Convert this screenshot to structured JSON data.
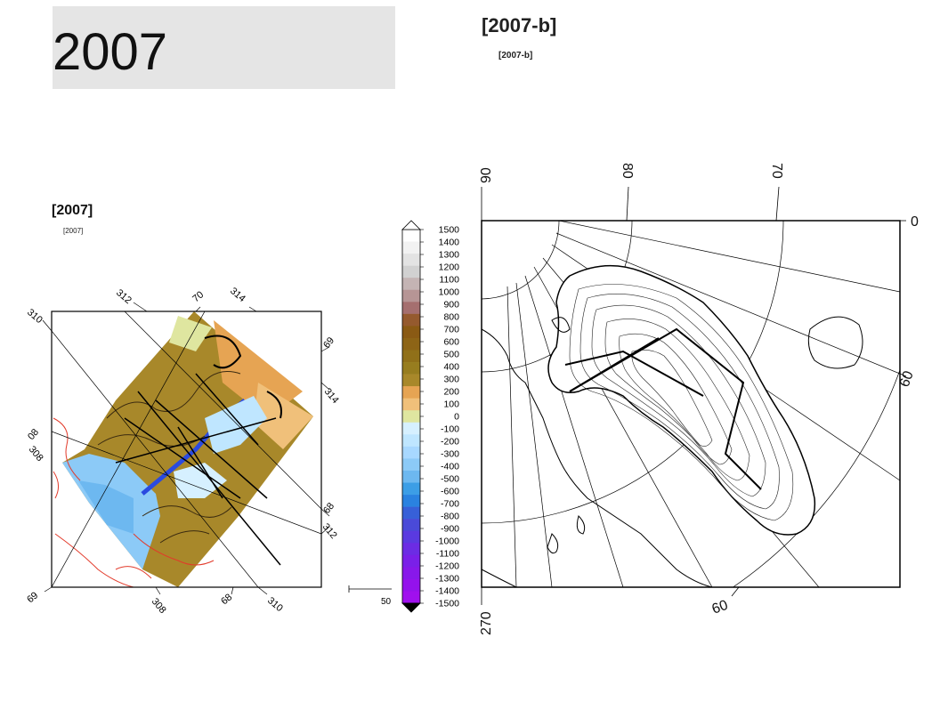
{
  "page_title": "2007",
  "map_right": {
    "caption": "[2007-b]",
    "subcaption": "[2007-b]",
    "lon_labels_top": [
      "90",
      "80",
      "70"
    ],
    "lon_labels_bottom": [
      "270",
      "60"
    ],
    "lat_labels_right": [
      "0",
      "60"
    ]
  },
  "map_left": {
    "caption": "[2007]",
    "subcaption": "[2007]",
    "grid_labels": [
      "312",
      "70",
      "314",
      "310",
      "69",
      "314",
      "308",
      "08",
      "68",
      "312",
      "69",
      "308",
      "68",
      "310"
    ],
    "scale_label": "50 km"
  },
  "colorbar": {
    "ticks": [
      "1500",
      "1400",
      "1300",
      "1200",
      "1100",
      "1000",
      "900",
      "800",
      "700",
      "600",
      "500",
      "400",
      "300",
      "200",
      "100",
      "0",
      "-100",
      "-200",
      "-300",
      "-400",
      "-500",
      "-600",
      "-700",
      "-800",
      "-900",
      "-1000",
      "-1100",
      "-1200",
      "-1300",
      "-1400",
      "-1500"
    ],
    "colors": [
      "#ffffff",
      "#f2f2f2",
      "#e3e3e3",
      "#d1d1d1",
      "#c4b4b4",
      "#b69595",
      "#a56f6f",
      "#955a2e",
      "#8a5a14",
      "#8d6416",
      "#907019",
      "#977d1f",
      "#a8882a",
      "#e6a453",
      "#f0c07a",
      "#dfe6a0",
      "#d6f0ff",
      "#bfe6ff",
      "#a8d8ff",
      "#8ccaf7",
      "#6db8f0",
      "#3c9ee6",
      "#2a82e0",
      "#3760d8",
      "#4a4ad8",
      "#5a3ae0",
      "#6c2ce4",
      "#7a20e8",
      "#8818ea",
      "#9412ec",
      "#a010ee"
    ]
  },
  "colors": {
    "title_box": "#e5e5e5",
    "terrain": "#a8882a",
    "water": "#8ccaf7",
    "coast": "#e23a2a"
  }
}
